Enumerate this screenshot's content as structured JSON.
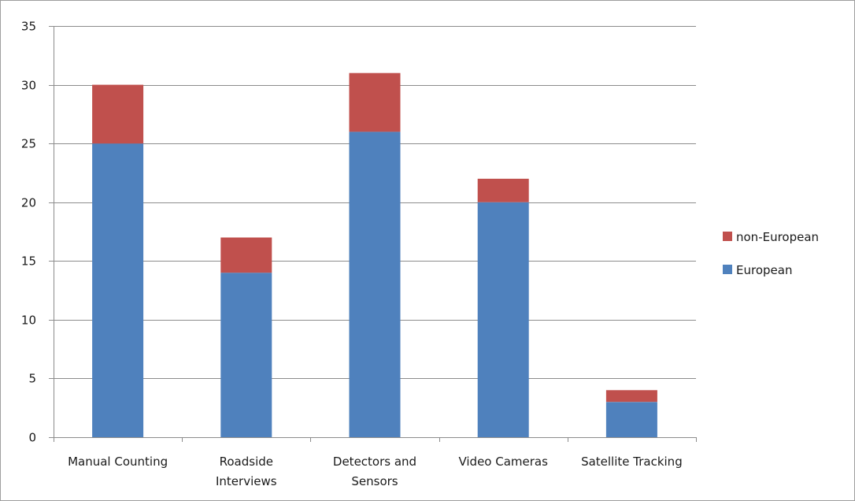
{
  "chart_data": {
    "type": "bar",
    "stacked": true,
    "categories": [
      [
        "Manual Counting"
      ],
      [
        "Roadside",
        "Interviews"
      ],
      [
        "Detectors and",
        "Sensors"
      ],
      [
        "Video Cameras"
      ],
      [
        "Satellite Tracking"
      ]
    ],
    "series": [
      {
        "name": "European",
        "color": "#4f81bd",
        "values": [
          25,
          14,
          26,
          20,
          3
        ]
      },
      {
        "name": "non-European",
        "color": "#c0504d",
        "values": [
          5,
          3,
          5,
          2,
          1
        ]
      }
    ],
    "ylim": [
      0,
      35
    ],
    "yticks": [
      0,
      5,
      10,
      15,
      20,
      25,
      30,
      35
    ],
    "grid": true,
    "legend_position": "right",
    "legend_order": [
      "non-European",
      "European"
    ],
    "title": "",
    "xlabel": "",
    "ylabel": ""
  }
}
